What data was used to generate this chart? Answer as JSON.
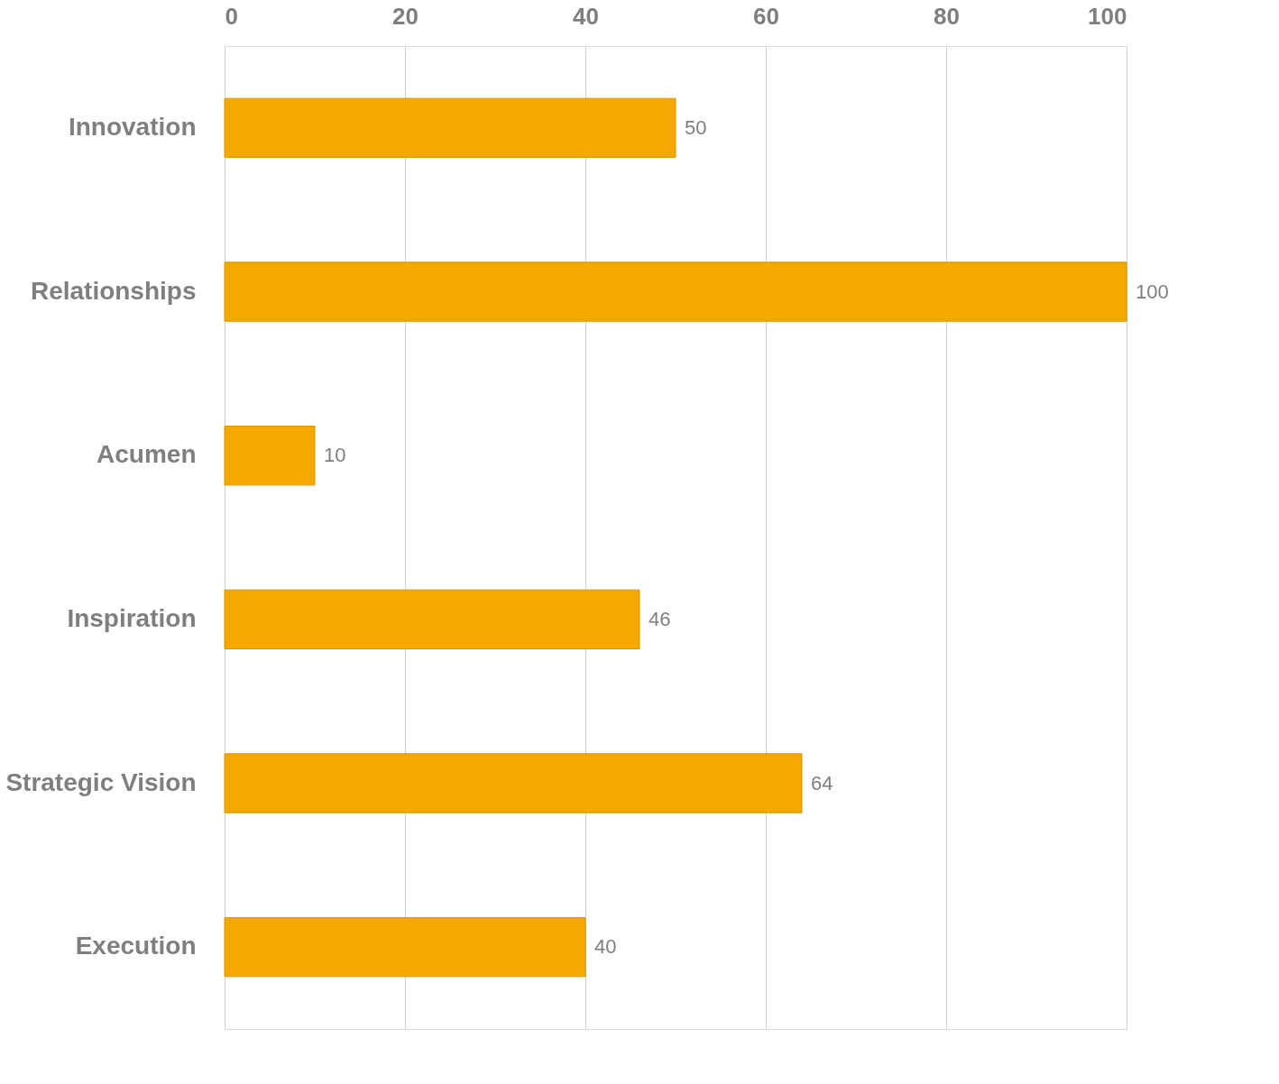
{
  "chart_data": {
    "type": "bar",
    "orientation": "horizontal",
    "categories": [
      "Innovation",
      "Relationships",
      "Acumen",
      "Inspiration",
      "Strategic Vision",
      "Execution"
    ],
    "values": [
      50,
      100,
      10,
      46,
      64,
      40
    ],
    "color": "#f5a800",
    "xlim": [
      0,
      100
    ],
    "xticks": [
      0,
      20,
      40,
      60,
      80,
      100
    ],
    "grid": "x",
    "data_labels": true
  }
}
